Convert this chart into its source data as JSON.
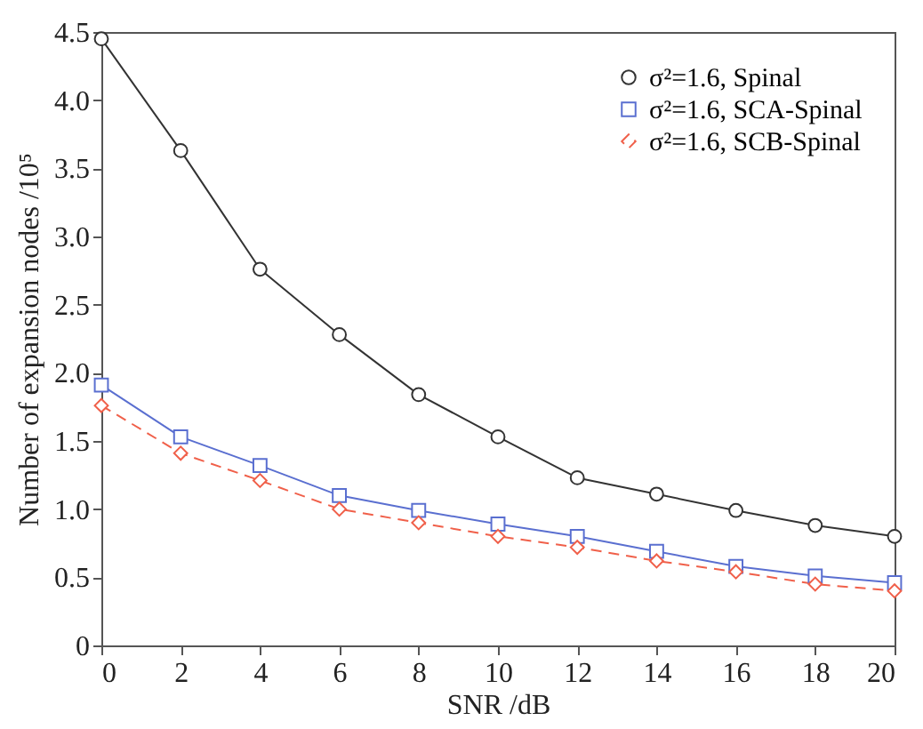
{
  "chart_data": {
    "type": "line",
    "xlabel": "SNR /dB",
    "ylabel": "Number of expansion nodes /10⁵",
    "x": [
      0,
      2,
      4,
      6,
      8,
      10,
      12,
      14,
      16,
      18,
      20
    ],
    "series": [
      {
        "name": "σ²=1.6, Spinal",
        "color": "#333333",
        "marker": "circle",
        "line_style": "solid",
        "values": [
          4.45,
          3.63,
          2.76,
          2.28,
          1.84,
          1.53,
          1.23,
          1.11,
          0.99,
          0.88,
          0.8
        ]
      },
      {
        "name": "σ²=1.6, SCA-Spinal",
        "color": "#5a6fd0",
        "marker": "square",
        "line_style": "solid",
        "values": [
          1.91,
          1.53,
          1.32,
          1.1,
          0.99,
          0.89,
          0.8,
          0.69,
          0.58,
          0.51,
          0.46
        ]
      },
      {
        "name": "σ²=1.6, SCB-Spinal",
        "color": "#f0604a",
        "marker": "diamond",
        "line_style": "dashed",
        "values": [
          1.76,
          1.41,
          1.21,
          1.0,
          0.9,
          0.8,
          0.72,
          0.62,
          0.54,
          0.45,
          0.4
        ]
      }
    ],
    "xlim": [
      0,
      20
    ],
    "xticks": [
      0,
      2,
      4,
      6,
      8,
      10,
      12,
      14,
      16,
      18,
      20
    ],
    "ylim": [
      0,
      4.5
    ],
    "yticks": [
      0,
      0.5,
      {
        "value": 1,
        "label": "1.0"
      },
      1.5,
      {
        "value": 2,
        "label": "2.0"
      },
      2.5,
      {
        "value": 3,
        "label": "3.0"
      },
      3.5,
      {
        "value": 4,
        "label": "4.0"
      },
      4.5
    ],
    "grid": false,
    "legend": "top right"
  }
}
